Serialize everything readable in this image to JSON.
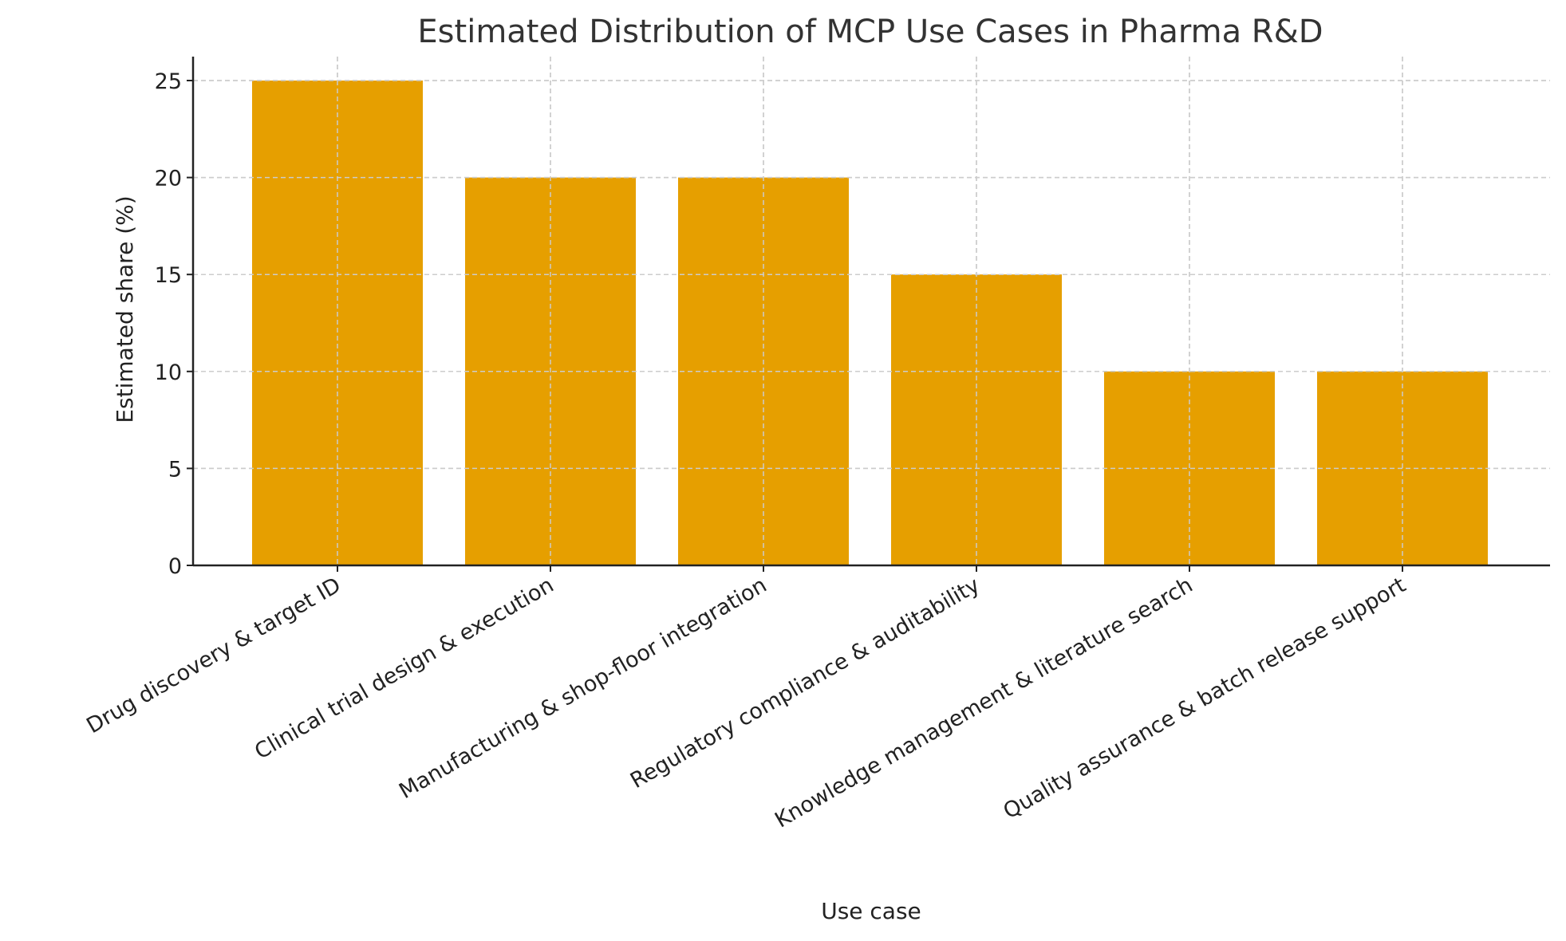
{
  "chart_data": {
    "type": "bar",
    "title": "Estimated Distribution of MCP Use Cases in Pharma R&D",
    "xlabel": "Use case",
    "ylabel": "Estimated share (%)",
    "categories": [
      "Drug discovery & target ID",
      "Clinical trial design & execution",
      "Manufacturing & shop-floor integration",
      "Regulatory compliance & auditability",
      "Knowledge management & literature search",
      "Quality assurance & batch release support"
    ],
    "values": [
      25,
      20,
      20,
      15,
      10,
      10
    ],
    "ylim": [
      0,
      26.25
    ],
    "yticks": [
      0,
      5,
      10,
      15,
      20,
      25
    ],
    "grid": true,
    "bar_color": "#E69F00",
    "xtick_rotation_deg": 30
  }
}
